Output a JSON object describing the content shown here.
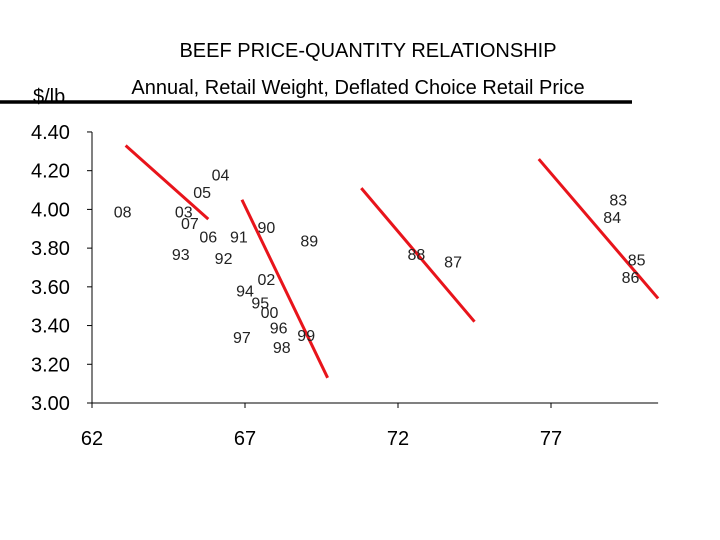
{
  "chart_data": {
    "type": "scatter",
    "title": "BEEF  PRICE-QUANTITY  RELATIONSHIP",
    "subtitle": "Annual, Retail Weight, Deflated Choice Retail Price",
    "ylabel": "$/lb",
    "xlabel": "",
    "xlim": [
      62,
      80.5
    ],
    "ylim": [
      3.0,
      4.4
    ],
    "x_ticks": [
      "62",
      "67",
      "72",
      "77"
    ],
    "x_tick_values": [
      62,
      67,
      72,
      77
    ],
    "y_ticks": [
      "4.40",
      "4.20",
      "4.00",
      "3.80",
      "3.60",
      "3.40",
      "3.20",
      "3.00"
    ],
    "y_tick_values": [
      4.4,
      4.2,
      4.0,
      3.8,
      3.6,
      3.4,
      3.2,
      3.0
    ],
    "points": [
      {
        "label": "04",
        "x": 66.2,
        "y": 4.18
      },
      {
        "label": "05",
        "x": 65.6,
        "y": 4.09
      },
      {
        "label": "08",
        "x": 63.0,
        "y": 3.99
      },
      {
        "label": "03",
        "x": 65.0,
        "y": 3.99
      },
      {
        "label": "07",
        "x": 65.2,
        "y": 3.93
      },
      {
        "label": "06",
        "x": 65.8,
        "y": 3.86
      },
      {
        "label": "91",
        "x": 66.8,
        "y": 3.86
      },
      {
        "label": "90",
        "x": 67.7,
        "y": 3.91
      },
      {
        "label": "89",
        "x": 69.1,
        "y": 3.84
      },
      {
        "label": "93",
        "x": 64.9,
        "y": 3.77
      },
      {
        "label": "92",
        "x": 66.3,
        "y": 3.75
      },
      {
        "label": "88",
        "x": 72.6,
        "y": 3.77
      },
      {
        "label": "87",
        "x": 73.8,
        "y": 3.73
      },
      {
        "label": "83",
        "x": 79.2,
        "y": 4.05
      },
      {
        "label": "84",
        "x": 79.0,
        "y": 3.96
      },
      {
        "label": "85",
        "x": 79.8,
        "y": 3.74
      },
      {
        "label": "86",
        "x": 79.6,
        "y": 3.65
      },
      {
        "label": "02",
        "x": 67.7,
        "y": 3.64
      },
      {
        "label": "94",
        "x": 67.0,
        "y": 3.58
      },
      {
        "label": "95",
        "x": 67.5,
        "y": 3.52
      },
      {
        "label": "00",
        "x": 67.8,
        "y": 3.47
      },
      {
        "label": "96",
        "x": 68.1,
        "y": 3.39
      },
      {
        "label": "99",
        "x": 69.0,
        "y": 3.35
      },
      {
        "label": "97",
        "x": 66.9,
        "y": 3.34
      },
      {
        "label": "98",
        "x": 68.2,
        "y": 3.29
      }
    ],
    "trend_lines": [
      {
        "x1": 63.1,
        "y1": 4.33,
        "x2": 65.8,
        "y2": 3.95
      },
      {
        "x1": 66.9,
        "y1": 4.05,
        "x2": 69.7,
        "y2": 3.13
      },
      {
        "x1": 70.8,
        "y1": 4.11,
        "x2": 74.5,
        "y2": 3.42
      },
      {
        "x1": 76.6,
        "y1": 4.26,
        "x2": 80.5,
        "y2": 3.54
      }
    ],
    "colors": {
      "trend": "#e8141b",
      "axis": "#000000",
      "text": "#000000"
    }
  }
}
